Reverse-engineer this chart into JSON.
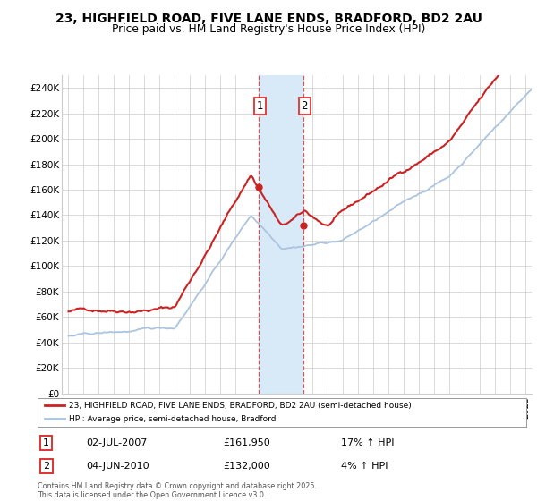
{
  "title_line1": "23, HIGHFIELD ROAD, FIVE LANE ENDS, BRADFORD, BD2 2AU",
  "title_line2": "Price paid vs. HM Land Registry's House Price Index (HPI)",
  "ylabel_ticks": [
    "£0",
    "£20K",
    "£40K",
    "£60K",
    "£80K",
    "£100K",
    "£120K",
    "£140K",
    "£160K",
    "£180K",
    "£200K",
    "£220K",
    "£240K"
  ],
  "ytick_values": [
    0,
    20000,
    40000,
    60000,
    80000,
    100000,
    120000,
    140000,
    160000,
    180000,
    200000,
    220000,
    240000
  ],
  "ylim": [
    0,
    250000
  ],
  "sale1_date": "02-JUL-2007",
  "sale1_price": 161950,
  "sale1_price_str": "£161,950",
  "sale1_hpi": "17% ↑ HPI",
  "sale1_x": 2007.5,
  "sale1_y": 161950,
  "sale2_date": "04-JUN-2010",
  "sale2_price": 132000,
  "sale2_price_str": "£132,000",
  "sale2_hpi": "4% ↑ HPI",
  "sale2_x": 2010.42,
  "sale2_y": 132000,
  "legend_label1": "23, HIGHFIELD ROAD, FIVE LANE ENDS, BRADFORD, BD2 2AU (semi-detached house)",
  "legend_label2": "HPI: Average price, semi-detached house, Bradford",
  "footer": "Contains HM Land Registry data © Crown copyright and database right 2025.\nThis data is licensed under the Open Government Licence v3.0.",
  "hpi_color": "#aac4e0",
  "price_color": "#cc2222",
  "shade_color": "#d8eaf8",
  "vline_color": "#dd3333",
  "bg_color": "#ffffff",
  "grid_color": "#cccccc",
  "xlim_left": 1994.6,
  "xlim_right": 2025.4
}
